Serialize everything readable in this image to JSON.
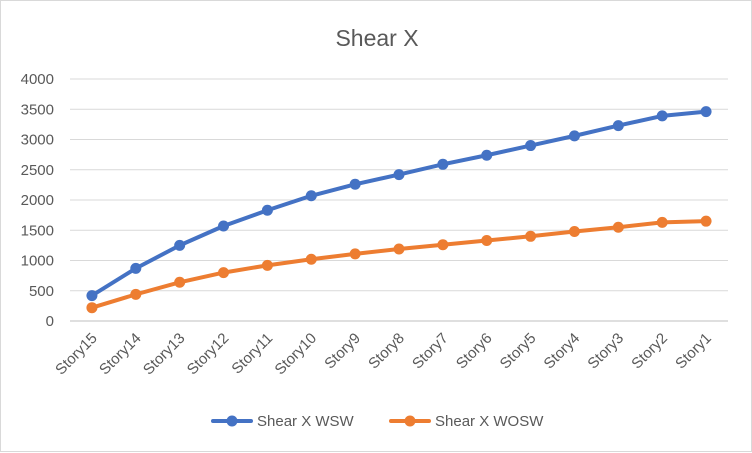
{
  "chart_data": {
    "type": "line",
    "title": "Shear X",
    "xlabel": "",
    "ylabel": "",
    "categories": [
      "Story15",
      "Story14",
      "Story13",
      "Story12",
      "Story11",
      "Story10",
      "Story9",
      "Story8",
      "Story7",
      "Story6",
      "Story5",
      "Story4",
      "Story3",
      "Story2",
      "Story1"
    ],
    "ylim": [
      0,
      4000
    ],
    "yticks": [
      "0",
      "500",
      "1000",
      "1500",
      "2000",
      "2500",
      "3000",
      "3500",
      "4000"
    ],
    "grid": true,
    "legend_position": "bottom",
    "series": [
      {
        "name": "Shear X WSW",
        "color": "#4472c4",
        "values": [
          420,
          870,
          1250,
          1570,
          1830,
          2070,
          2260,
          2420,
          2590,
          2740,
          2900,
          3060,
          3230,
          3390,
          3460
        ]
      },
      {
        "name": "Shear X WOSW",
        "color": "#ed7d31",
        "values": [
          220,
          440,
          640,
          800,
          920,
          1020,
          1110,
          1190,
          1260,
          1330,
          1400,
          1480,
          1550,
          1630,
          1650
        ]
      }
    ]
  }
}
